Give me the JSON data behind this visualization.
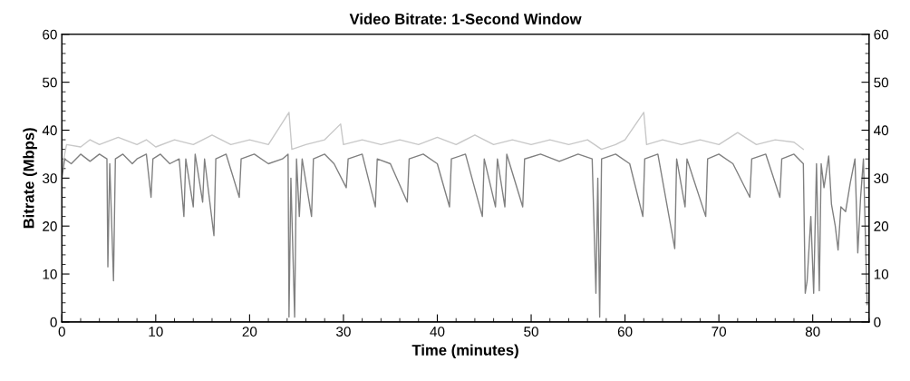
{
  "chart_data": {
    "type": "line",
    "title": "Video Bitrate: 1-Second Window",
    "xlabel": "Time (minutes)",
    "ylabel": "Bitrate (Mbps)",
    "xlim": [
      0,
      86
    ],
    "xticks": [
      0,
      10,
      20,
      30,
      40,
      50,
      60,
      70,
      80
    ],
    "ylim": [
      0,
      60
    ],
    "yticks": [
      0,
      10,
      20,
      30,
      40,
      50,
      60
    ],
    "y2lim": [
      0,
      60
    ],
    "y2ticks": [
      0,
      10,
      20,
      30,
      40,
      50,
      60
    ],
    "grid": false,
    "marker": "none",
    "line_style": "solid",
    "series": [
      {
        "color": "#c8c8c8",
        "x": [
          0,
          0.5,
          2,
          3,
          4,
          6,
          8,
          9,
          10,
          12,
          14,
          16,
          18,
          20,
          22,
          24.2,
          24.5,
          26,
          28,
          29.7,
          30,
          32,
          34,
          36,
          38,
          40,
          42,
          44,
          46,
          48,
          50,
          52,
          54,
          56,
          57.5,
          59,
          60,
          62,
          62.3,
          64,
          66,
          68,
          70,
          72,
          74,
          76,
          78,
          79
        ],
        "values": [
          32,
          37,
          36.5,
          38,
          37,
          38.5,
          37,
          38,
          36.5,
          38,
          37,
          39,
          37,
          38,
          37,
          43.7,
          36,
          37,
          38,
          41.3,
          37,
          38,
          37,
          38,
          37,
          38.5,
          37,
          39,
          37,
          38,
          37,
          38,
          37,
          38,
          36,
          37,
          38,
          43.7,
          37,
          38,
          37,
          38,
          37,
          39.5,
          37,
          38,
          37.5,
          36
        ]
      },
      {
        "color": "#808080",
        "x": [
          0,
          0.3,
          1,
          2,
          3,
          4,
          4.8,
          4.9,
          5.1,
          5.5,
          5.7,
          6.5,
          7.5,
          8,
          9,
          9.5,
          9.7,
          10.5,
          11.5,
          12.5,
          13,
          13.2,
          14,
          14.2,
          15,
          15.2,
          16.2,
          16.4,
          17.5,
          18.9,
          19.1,
          20.5,
          22,
          23.5,
          24.1,
          24.2,
          24.4,
          24.8,
          25,
          25.3,
          25.6,
          26.6,
          26.8,
          28,
          29,
          30.3,
          30.5,
          32,
          33.4,
          33.6,
          35,
          36.8,
          37,
          38.5,
          40,
          41.3,
          41.5,
          43,
          44.8,
          45,
          46.2,
          46.4,
          47.2,
          47.4,
          49.1,
          49.3,
          51,
          53,
          55,
          56.5,
          56.9,
          57.1,
          57.3,
          57.5,
          59,
          60.5,
          61.9,
          62.1,
          63.5,
          65.3,
          65.5,
          66.4,
          66.6,
          68.6,
          68.8,
          70,
          71.5,
          73.3,
          73.5,
          75,
          76.5,
          76.7,
          78,
          79,
          79.2,
          79.4,
          79.8,
          80.1,
          80.4,
          80.7,
          80.9,
          81.2,
          81.7,
          82,
          82.4,
          82.7,
          83,
          83.5,
          84,
          84.5,
          84.8,
          85.1,
          85.4,
          85.8
        ],
        "values": [
          30,
          34,
          33,
          35,
          33.5,
          35,
          34,
          11.5,
          33,
          8.6,
          34,
          35,
          33,
          34,
          35,
          26,
          34,
          35,
          33,
          34,
          22,
          34,
          24,
          35,
          25,
          34,
          18,
          34,
          35,
          26,
          34,
          35,
          33,
          34,
          35,
          1,
          30,
          1,
          34,
          22,
          34,
          22,
          34,
          35,
          33,
          28,
          34,
          35,
          24,
          34,
          33,
          25,
          34,
          35,
          33,
          24,
          34,
          35,
          22,
          34,
          24,
          34,
          24,
          35,
          24,
          34,
          35,
          33.5,
          35,
          34,
          6,
          30,
          1,
          34,
          35,
          33,
          22,
          34,
          35,
          15.3,
          34,
          24,
          34,
          22,
          34,
          35,
          33,
          26,
          34,
          35,
          26,
          34,
          35,
          33,
          6,
          8.5,
          22,
          6,
          33,
          6.5,
          33,
          28,
          34.6,
          24.5,
          20,
          15,
          24,
          23,
          29,
          34,
          14.4,
          26,
          34,
          3.6
        ]
      }
    ]
  }
}
